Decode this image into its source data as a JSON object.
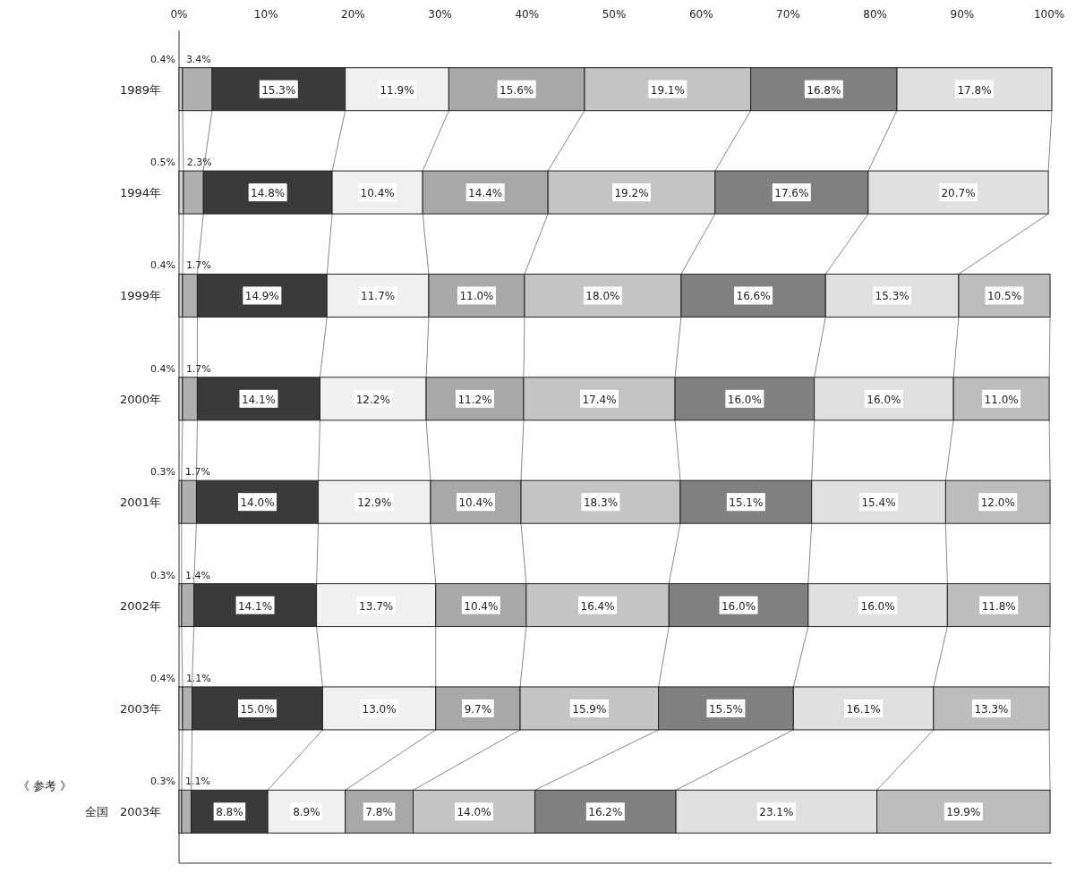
{
  "chart_data": {
    "type": "bar",
    "orientation": "horizontal",
    "stacked": true,
    "categories": [
      "1989年",
      "1994年",
      "1999年",
      "2000年",
      "2001年",
      "2002年",
      "2003年",
      "全国　2003年"
    ],
    "xlim": [
      0,
      100.3
    ],
    "xticks": [
      {
        "value": 0,
        "label": "0%"
      },
      {
        "value": 10,
        "label": "10%"
      },
      {
        "value": 20,
        "label": "20%"
      },
      {
        "value": 30,
        "label": "30%"
      },
      {
        "value": 40,
        "label": "40%"
      },
      {
        "value": 50,
        "label": "50%"
      },
      {
        "value": 60,
        "label": "60%"
      },
      {
        "value": 70,
        "label": "70%"
      },
      {
        "value": 80,
        "label": "80%"
      },
      {
        "value": 90,
        "label": "90%"
      },
      {
        "value": 100,
        "label": "100%"
      }
    ],
    "annotations": [
      "《 参考 》"
    ],
    "series": [
      {
        "color": "#d0d0d0",
        "values": [
          0.4,
          0.5,
          0.4,
          0.4,
          0.3,
          0.3,
          0.4,
          0.3
        ],
        "value_labels": [
          "0.4%",
          "0.5%",
          "0.4%",
          "0.4%",
          "0.3%",
          "0.3%",
          "0.4%",
          "0.3%"
        ]
      },
      {
        "color": "#b0b0b0",
        "values": [
          3.4,
          2.3,
          1.7,
          1.7,
          1.7,
          1.4,
          1.1,
          1.1
        ],
        "value_labels": [
          "3.4%",
          "2.3%",
          "1.7%",
          "1.7%",
          "1.7%",
          "1.4%",
          "1.1%",
          "1.1%"
        ]
      },
      {
        "color": "#3a3a3a",
        "values": [
          15.3,
          14.8,
          14.9,
          14.1,
          14.0,
          14.1,
          15.0,
          8.8
        ],
        "value_labels": [
          "15.3%",
          "14.8%",
          "14.9%",
          "14.1%",
          "14.0%",
          "14.1%",
          "15.0%",
          "8.8%"
        ]
      },
      {
        "color": "#f0f0f0",
        "values": [
          11.9,
          10.4,
          11.7,
          12.2,
          12.9,
          13.7,
          13.0,
          8.9
        ],
        "value_labels": [
          "11.9%",
          "10.4%",
          "11.7%",
          "12.2%",
          "12.9%",
          "13.7%",
          "13.0%",
          "8.9%"
        ]
      },
      {
        "color": "#a8a8a8",
        "values": [
          15.6,
          14.4,
          11.0,
          11.2,
          10.4,
          10.4,
          9.7,
          7.8
        ],
        "value_labels": [
          "15.6%",
          "14.4%",
          "11.0%",
          "11.2%",
          "10.4%",
          "10.4%",
          "9.7%",
          "7.8%"
        ]
      },
      {
        "color": "#c4c4c4",
        "values": [
          19.1,
          19.2,
          18.0,
          17.4,
          18.3,
          16.4,
          15.9,
          14.0
        ],
        "value_labels": [
          "19.1%",
          "19.2%",
          "18.0%",
          "17.4%",
          "18.3%",
          "16.4%",
          "15.9%",
          "14.0%"
        ]
      },
      {
        "color": "#808080",
        "values": [
          16.8,
          17.6,
          16.6,
          16.0,
          15.1,
          16.0,
          15.5,
          16.2
        ],
        "value_labels": [
          "16.8%",
          "17.6%",
          "16.6%",
          "16.0%",
          "15.1%",
          "16.0%",
          "15.5%",
          "16.2%"
        ]
      },
      {
        "color": "#e0e0e0",
        "values": [
          17.8,
          20.7,
          15.3,
          16.0,
          15.4,
          16.0,
          16.1,
          23.1
        ],
        "value_labels": [
          "17.8%",
          "20.7%",
          "15.3%",
          "16.0%",
          "15.4%",
          "16.0%",
          "16.1%",
          "23.1%"
        ]
      },
      {
        "color": "#bdbdbd",
        "values": [
          null,
          null,
          10.5,
          11.0,
          12.0,
          11.8,
          13.3,
          19.9
        ],
        "value_labels": [
          null,
          null,
          "10.5%",
          "11.0%",
          "12.0%",
          "11.8%",
          "13.3%",
          "19.9%"
        ]
      }
    ]
  }
}
